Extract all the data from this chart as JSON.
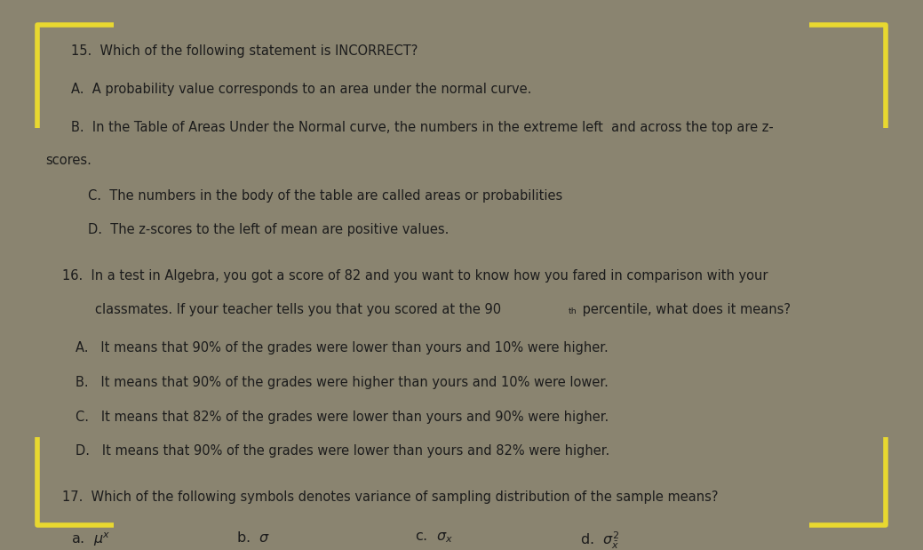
{
  "bg_color": "#8a8470",
  "paper_color": "#d4cfc0",
  "corner_color": "#e8d830",
  "text_color": "#1c1c1c",
  "fs": 10.5,
  "q15_stem": "15.  Which of the following statement is INCORRECT?",
  "q15_A": "A.  A probability value corresponds to an area under the normal curve.",
  "q15_B1": "B.  In the Table of Areas Under the Normal curve, the numbers in the extreme left  and across the top are z-",
  "q15_B2": "scores.",
  "q15_C": "C.  The numbers in the body of the table are called areas or probabilities",
  "q15_D": "D.  The z-scores to the left of mean are positive values.",
  "q16_stem1": "16.  In a test in Algebra, you got a score of 82 and you want to know how you fared in comparison with your",
  "q16_stem2_pre": "classmates. If your teacher tells you that you scored at the 90",
  "q16_stem2_super": "th",
  "q16_stem2_post": " percentile, what does it means?",
  "q16_A": "A.   It means that 90% of the grades were lower than yours and 10% were higher.",
  "q16_B": "B.   It means that 90% of the grades were higher than yours and 10% were lower.",
  "q16_C": "C.   It means that 82% of the grades were lower than yours and 90% were higher.",
  "q16_D": "D.   It means that 90% of the grades were lower than yours and 82% were higher.",
  "q17_stem": "17.  Which of the following symbols denotes variance of sampling distribution of the sample means?",
  "q17_a_label": "a.  ",
  "q17_b_label": "b.  σ",
  "q17_c_label": "c.  ",
  "q17_d_label": "d.  "
}
